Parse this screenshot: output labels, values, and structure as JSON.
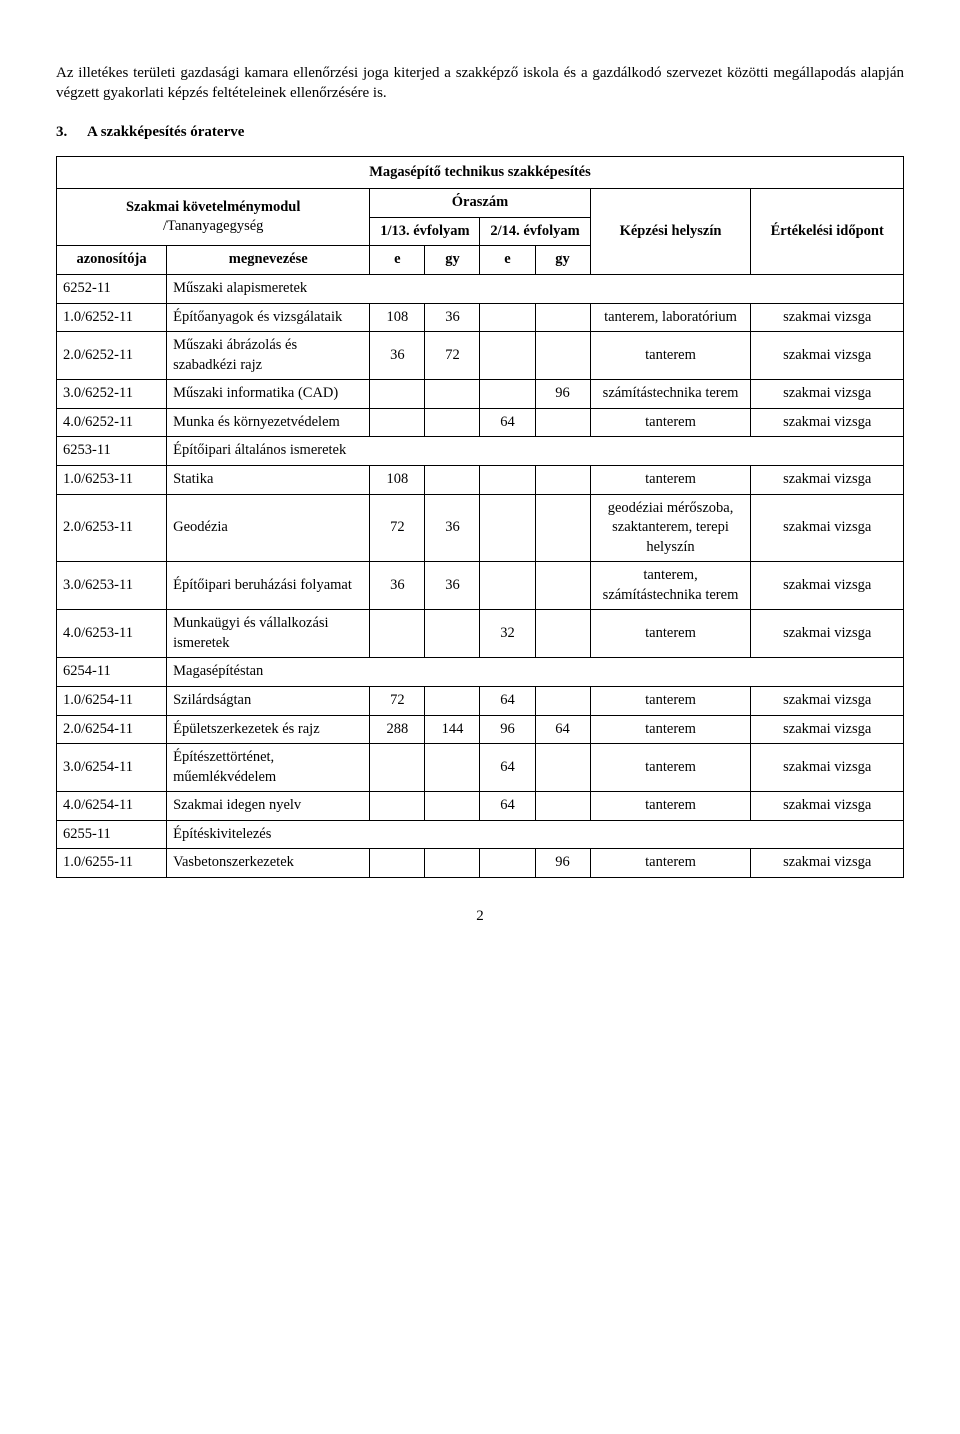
{
  "intro": "Az illetékes területi gazdasági kamara ellenőrzési joga kiterjed a szakképző iskola és a gazdálkodó szervezet közötti megállapodás alapján végzett gyakorlati képzés feltételeinek ellenőrzésére is.",
  "section": {
    "num": "3.",
    "title": "A szakképesítés óraterve"
  },
  "table": {
    "mainTitle": "Magasépítő technikus szakképesítés",
    "reqModuleLabelLine1": "Szakmai követelménymodul",
    "reqModuleLabelLine2": "/Tananyagegység",
    "oraszamLabel": "Óraszám",
    "year1": "1/13. évfolyam",
    "year2": "2/14. évfolyam",
    "locLabel": "Képzési helyszín",
    "evalLabel": "Értékelési időpont",
    "idLabel": "azonosítója",
    "nameLabel": "megnevezése",
    "e": "e",
    "gy": "gy"
  },
  "rows": [
    {
      "type": "module",
      "id": "6252-11",
      "name": "Műszaki alapismeretek"
    },
    {
      "type": "unit",
      "id": "1.0/6252-11",
      "name": "Építőanyagok és vizsgálataik",
      "e1": "108",
      "gy1": "36",
      "e2": "",
      "gy2": "",
      "loc": "tanterem, laboratórium",
      "eval": "szakmai vizsga"
    },
    {
      "type": "unit",
      "id": "2.0/6252-11",
      "name": "Műszaki ábrázolás és szabadkézi rajz",
      "e1": "36",
      "gy1": "72",
      "e2": "",
      "gy2": "",
      "loc": "tanterem",
      "eval": "szakmai vizsga"
    },
    {
      "type": "unit",
      "id": "3.0/6252-11",
      "name": "Műszaki informatika (CAD)",
      "e1": "",
      "gy1": "",
      "e2": "",
      "gy2": "96",
      "loc": "számítástechnika terem",
      "eval": "szakmai vizsga"
    },
    {
      "type": "unit",
      "id": "4.0/6252-11",
      "name": "Munka és környezetvédelem",
      "e1": "",
      "gy1": "",
      "e2": "64",
      "gy2": "",
      "loc": "tanterem",
      "eval": "szakmai vizsga"
    },
    {
      "type": "module",
      "id": "6253-11",
      "name": "Építőipari általános ismeretek"
    },
    {
      "type": "unit",
      "id": "1.0/6253-11",
      "name": "Statika",
      "e1": "108",
      "gy1": "",
      "e2": "",
      "gy2": "",
      "loc": "tanterem",
      "eval": "szakmai vizsga"
    },
    {
      "type": "unit",
      "id": "2.0/6253-11",
      "name": "Geodézia",
      "e1": "72",
      "gy1": "36",
      "e2": "",
      "gy2": "",
      "loc": "geodéziai mérőszoba, szaktanterem, terepi helyszín",
      "eval": "szakmai vizsga"
    },
    {
      "type": "unit",
      "id": "3.0/6253-11",
      "name": "Építőipari beruházási folyamat",
      "e1": "36",
      "gy1": "36",
      "e2": "",
      "gy2": "",
      "loc": "tanterem, számítástechnika terem",
      "eval": "szakmai vizsga"
    },
    {
      "type": "unit",
      "id": "4.0/6253-11",
      "name": "Munkaügyi és vállalkozási ismeretek",
      "e1": "",
      "gy1": "",
      "e2": "32",
      "gy2": "",
      "loc": "tanterem",
      "eval": "szakmai vizsga"
    },
    {
      "type": "module",
      "id": "6254-11",
      "name": "Magasépítéstan"
    },
    {
      "type": "unit",
      "id": "1.0/6254-11",
      "name": "Szilárdságtan",
      "e1": "72",
      "gy1": "",
      "e2": "64",
      "gy2": "",
      "loc": "tanterem",
      "eval": "szakmai vizsga"
    },
    {
      "type": "unit",
      "id": "2.0/6254-11",
      "name": "Épületszerkezetek és rajz",
      "e1": "288",
      "gy1": "144",
      "e2": "96",
      "gy2": "64",
      "loc": "tanterem",
      "eval": "szakmai vizsga"
    },
    {
      "type": "unit",
      "id": "3.0/6254-11",
      "name": "Építészettörténet, műemlékvédelem",
      "e1": "",
      "gy1": "",
      "e2": "64",
      "gy2": "",
      "loc": "tanterem",
      "eval": "szakmai vizsga"
    },
    {
      "type": "unit",
      "id": "4.0/6254-11",
      "name": "Szakmai idegen nyelv",
      "e1": "",
      "gy1": "",
      "e2": "64",
      "gy2": "",
      "loc": "tanterem",
      "eval": "szakmai vizsga"
    },
    {
      "type": "module",
      "id": "6255-11",
      "name": "Építéskivitelezés"
    },
    {
      "type": "unit",
      "id": "1.0/6255-11",
      "name": "Vasbetonszerkezetek",
      "e1": "",
      "gy1": "",
      "e2": "",
      "gy2": "96",
      "loc": "tanterem",
      "eval": "szakmai vizsga"
    }
  ],
  "pageNumber": "2"
}
